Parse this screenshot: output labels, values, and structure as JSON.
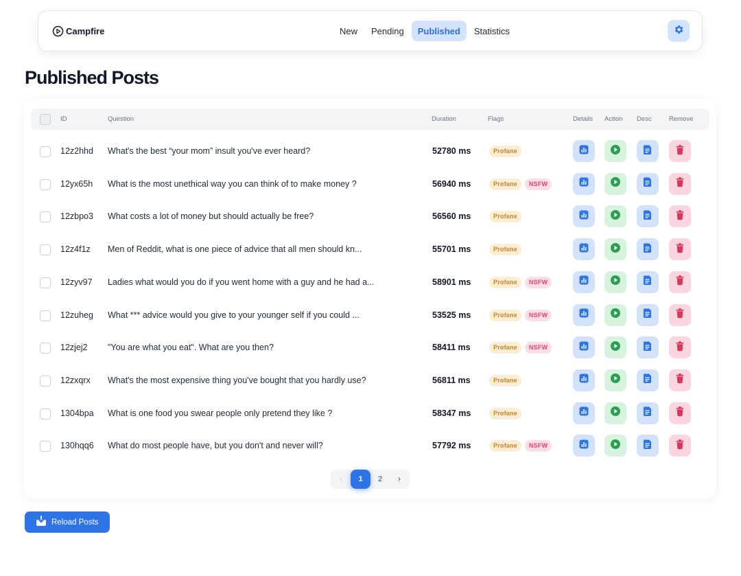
{
  "header": {
    "brand": "Campfire",
    "nav": [
      "New",
      "Pending",
      "Published",
      "Statistics"
    ],
    "active_nav": "Published",
    "settings_icon": "gear-icon"
  },
  "page_title": "Published Posts",
  "table": {
    "columns": {
      "id": "ID",
      "question": "Question",
      "duration": "Duration",
      "flags": "Flags",
      "details": "Details",
      "action": "Action",
      "desc": "Desc",
      "remove": "Remove"
    },
    "rows": [
      {
        "id": "12z2hhd",
        "question": "What's the best “your mom” insult you've ever heard?",
        "duration": "52780 ms",
        "flags": [
          "Profane"
        ]
      },
      {
        "id": "12yx65h",
        "question": "What is the most unethical way you can think of to make money ?",
        "duration": "56940 ms",
        "flags": [
          "Profane",
          "NSFW"
        ]
      },
      {
        "id": "12zbpo3",
        "question": "What costs a lot of money but should actually be free?",
        "duration": "56560 ms",
        "flags": [
          "Profane"
        ]
      },
      {
        "id": "12z4f1z",
        "question": "Men of Reddit, what is one piece of advice that all men should kn...",
        "duration": "55701 ms",
        "flags": [
          "Profane"
        ]
      },
      {
        "id": "12zyv97",
        "question": "Ladies what would you do if you went home with a guy and he had a...",
        "duration": "58901 ms",
        "flags": [
          "Profane",
          "NSFW"
        ]
      },
      {
        "id": "12zuheg",
        "question": "What *** advice would you give to your younger self if you could ...",
        "duration": "53525 ms",
        "flags": [
          "Profane",
          "NSFW"
        ]
      },
      {
        "id": "12zjej2",
        "question": "\"You are what you eat\". What are you then?",
        "duration": "58411 ms",
        "flags": [
          "Profane",
          "NSFW"
        ]
      },
      {
        "id": "12zxqrx",
        "question": "What's the most expensive thing you've bought that you hardly use?",
        "duration": "56811 ms",
        "flags": [
          "Profane"
        ]
      },
      {
        "id": "1304bpa",
        "question": "What is one food you swear people only pretend they like ?",
        "duration": "58347 ms",
        "flags": [
          "Profane"
        ]
      },
      {
        "id": "130hqq6",
        "question": "What do most people have, but you don't and never will?",
        "duration": "57792 ms",
        "flags": [
          "Profane",
          "NSFW"
        ]
      }
    ],
    "row_icons": {
      "details": "bar-chart-icon",
      "action": "play-icon",
      "desc": "document-icon",
      "remove": "trash-icon"
    }
  },
  "pagination": {
    "prev": "‹",
    "pages": [
      "1",
      "2"
    ],
    "current": "1",
    "next": "›"
  },
  "reload_button": {
    "label": "Reload Posts",
    "icon": "download-tray-icon"
  },
  "colors": {
    "primary": "#2e74e6",
    "profane_bg": "#fbecd6",
    "profane_text": "#c2852a",
    "nsfw_bg": "#fbdde5",
    "nsfw_text": "#d84a72",
    "play_green": "#2f9e53",
    "trash_red": "#d8365c"
  }
}
